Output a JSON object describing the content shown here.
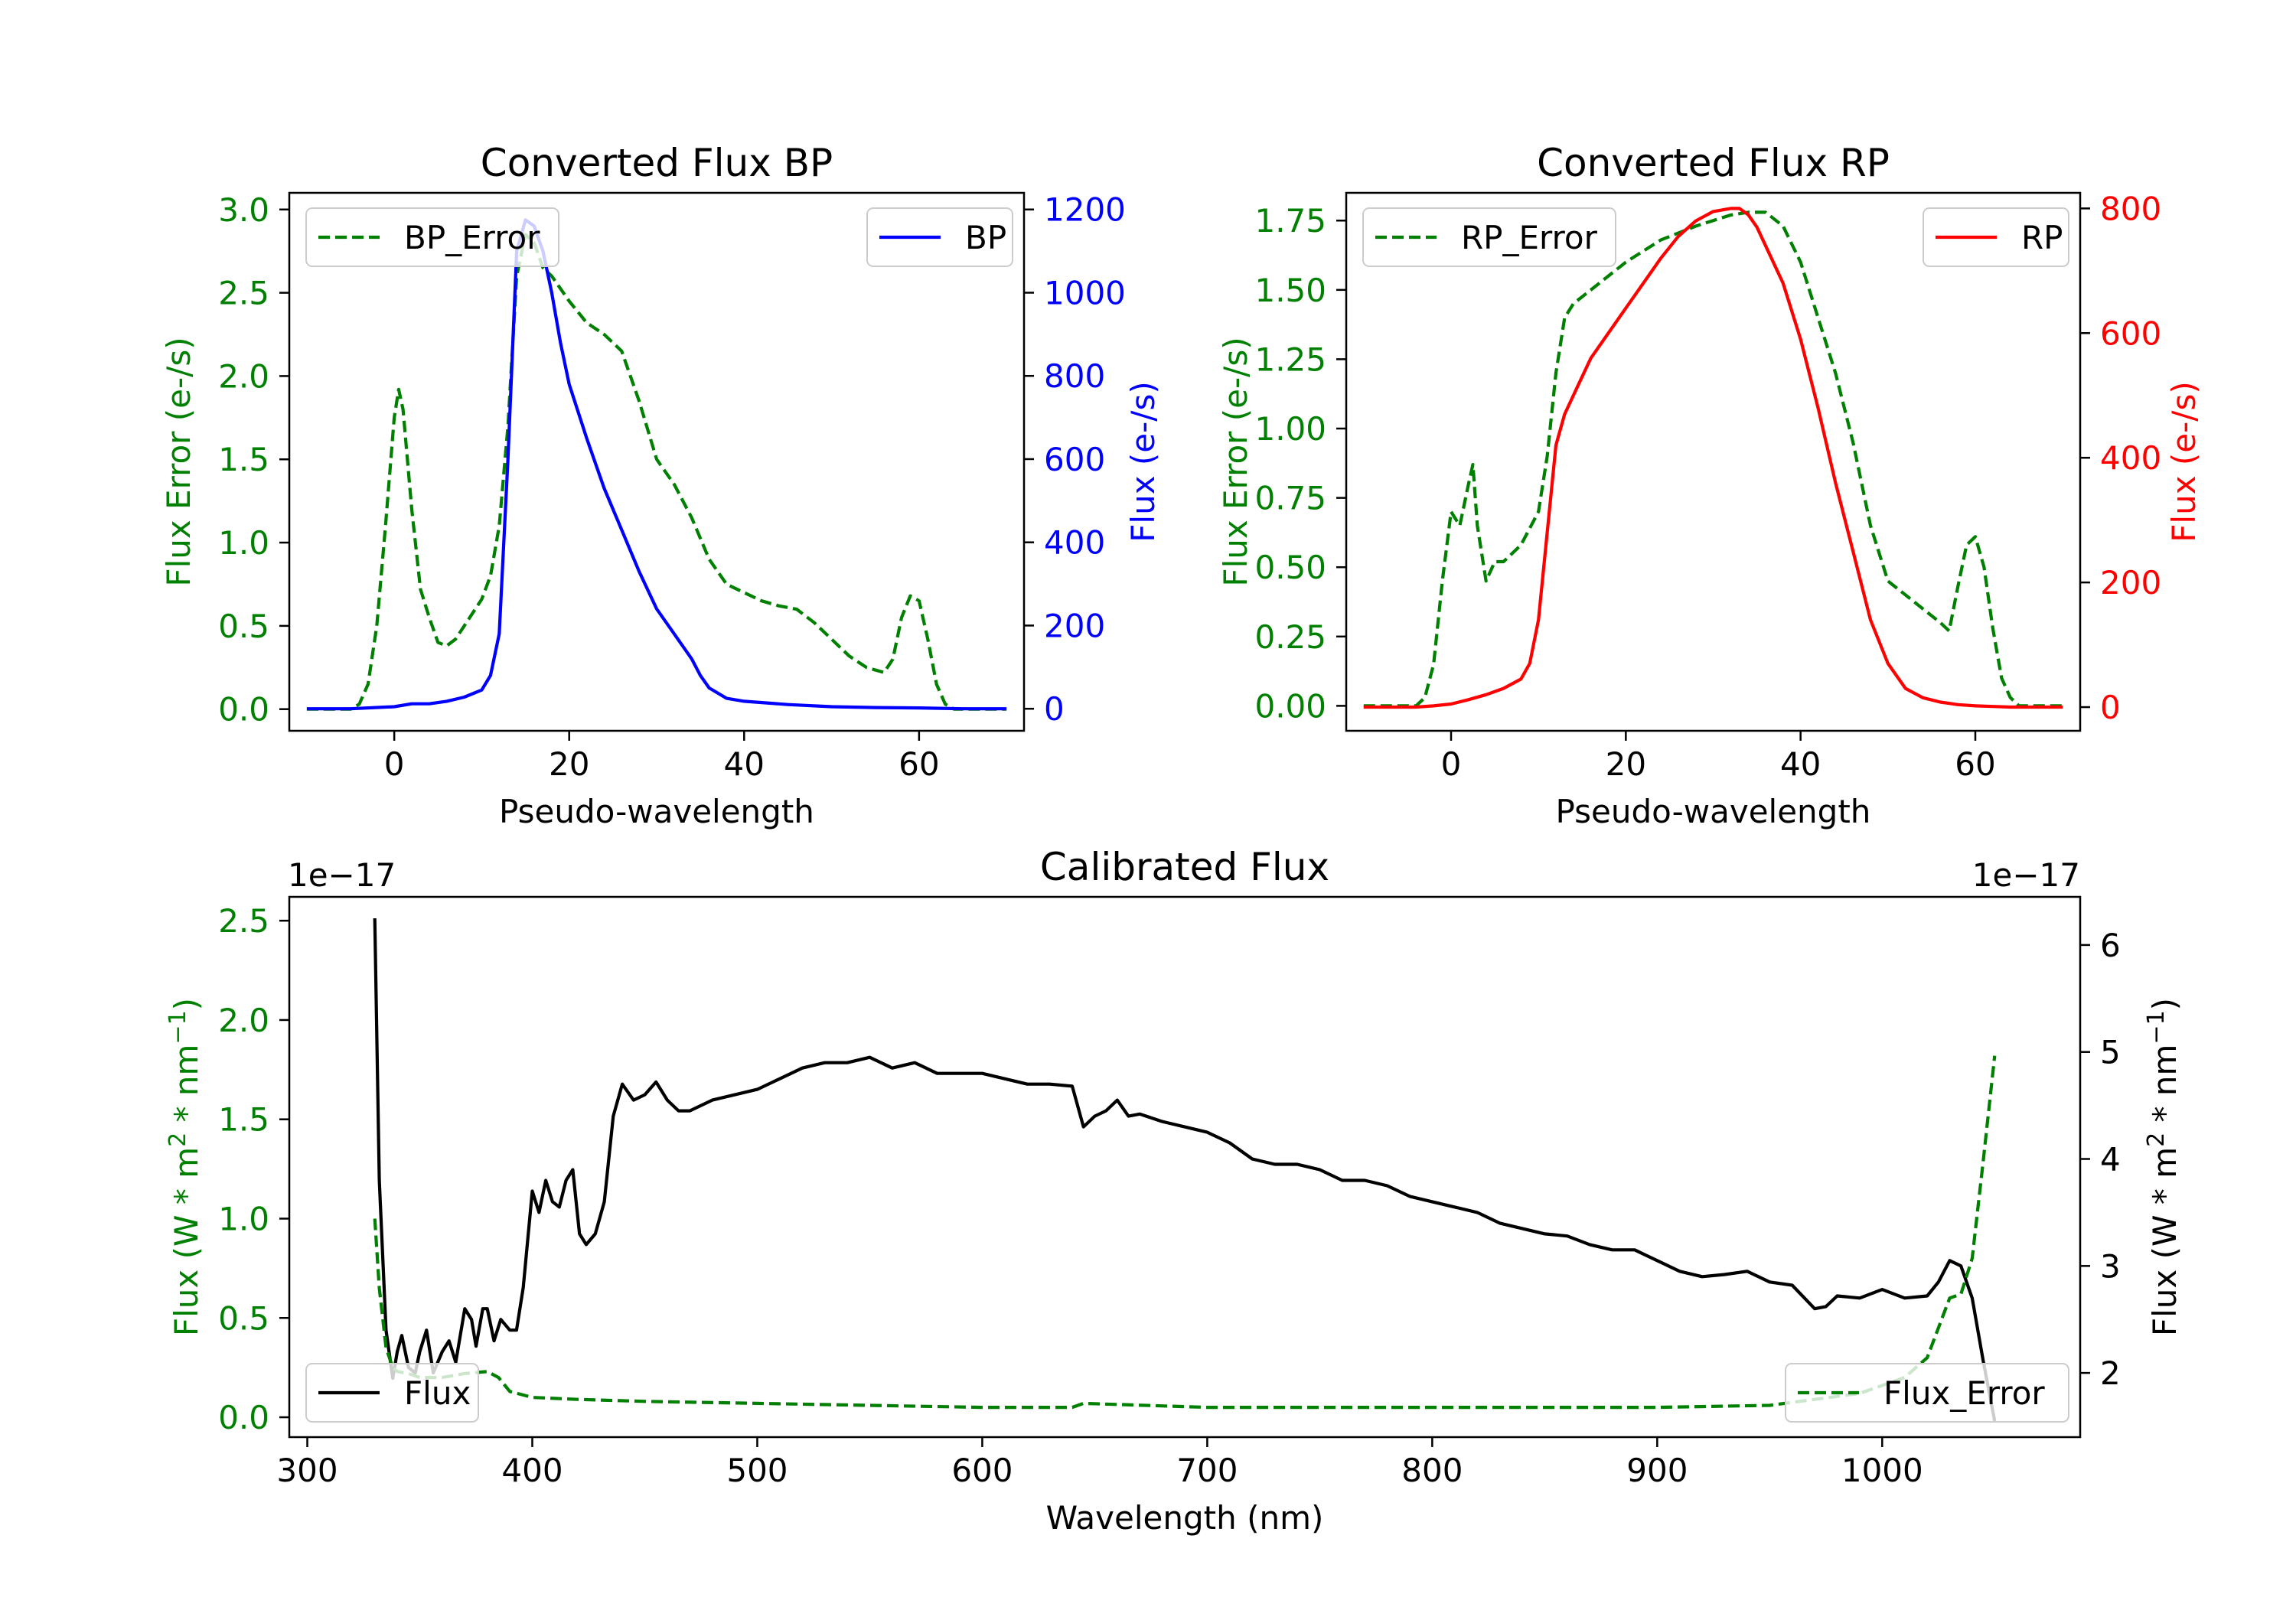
{
  "colors": {
    "bp": "#0000ff",
    "rp": "#ff0000",
    "error": "#008000",
    "flux": "#000000",
    "axis": "#000000",
    "legend_border": "#cccccc"
  },
  "chart_data": [
    {
      "type": "line",
      "title": "Converted Flux BP",
      "xlabel": "Pseudo-wavelength",
      "ylabel_left": "Flux Error (e-/s)",
      "ylabel_right": "Flux (e-/s)",
      "xlim": [
        -12,
        72
      ],
      "ylim_left": [
        -0.13,
        3.1
      ],
      "ylim_right": [
        -53,
        1240
      ],
      "xticks": [
        "0",
        "20",
        "40",
        "60"
      ],
      "xtick_values": [
        0,
        20,
        40,
        60
      ],
      "yticks_left": [
        "0.0",
        "0.5",
        "1.0",
        "1.5",
        "2.0",
        "2.5",
        "3.0"
      ],
      "ytick_values_left": [
        0,
        0.5,
        1.0,
        1.5,
        2.0,
        2.5,
        3.0
      ],
      "yticks_right": [
        "0",
        "200",
        "400",
        "600",
        "800",
        "1000",
        "1200"
      ],
      "ytick_values_right": [
        0,
        200,
        400,
        600,
        800,
        1000,
        1200
      ],
      "legend_left": "BP_Error",
      "legend_right": "BP",
      "series": [
        {
          "name": "BP_Error",
          "axis": "left",
          "style": "dashed",
          "x": [
            -10,
            -5,
            -4,
            -3,
            -2,
            -1,
            0,
            0.5,
            1,
            2,
            3,
            4,
            5,
            6,
            7,
            8,
            9,
            10,
            11,
            12,
            13,
            14,
            15,
            16,
            17,
            18,
            20,
            22,
            24,
            26,
            28,
            30,
            32,
            34,
            36,
            38,
            40,
            42,
            44,
            46,
            48,
            50,
            52,
            54,
            56,
            57,
            58,
            59,
            60,
            61,
            62,
            63,
            64,
            66,
            70
          ],
          "y": [
            0,
            0,
            0.03,
            0.15,
            0.5,
            1.1,
            1.75,
            1.92,
            1.8,
            1.2,
            0.72,
            0.55,
            0.4,
            0.38,
            0.42,
            0.5,
            0.58,
            0.66,
            0.8,
            1.1,
            1.7,
            2.6,
            2.85,
            2.8,
            2.65,
            2.6,
            2.45,
            2.32,
            2.25,
            2.15,
            1.85,
            1.5,
            1.35,
            1.15,
            0.9,
            0.75,
            0.7,
            0.65,
            0.62,
            0.6,
            0.52,
            0.42,
            0.32,
            0.25,
            0.22,
            0.3,
            0.55,
            0.68,
            0.65,
            0.42,
            0.15,
            0.03,
            0,
            0,
            0
          ]
        },
        {
          "name": "BP",
          "axis": "right",
          "style": "solid",
          "x": [
            -10,
            -5,
            0,
            2,
            4,
            6,
            8,
            10,
            11,
            12,
            13,
            14,
            15,
            16,
            17,
            18,
            19,
            20,
            22,
            24,
            26,
            28,
            30,
            32,
            34,
            35,
            36,
            38,
            40,
            45,
            50,
            55,
            60,
            65,
            70
          ],
          "y": [
            0,
            0,
            5,
            12,
            12,
            18,
            28,
            45,
            80,
            180,
            600,
            1100,
            1175,
            1160,
            1100,
            1000,
            880,
            780,
            650,
            530,
            430,
            330,
            240,
            180,
            120,
            80,
            50,
            25,
            18,
            10,
            5,
            3,
            2,
            0,
            0
          ]
        }
      ]
    },
    {
      "type": "line",
      "title": "Converted Flux RP",
      "xlabel": "Pseudo-wavelength",
      "ylabel_left": "Flux Error (e-/s)",
      "ylabel_right": "Flux (e-/s)",
      "xlim": [
        -12,
        72
      ],
      "ylim_left": [
        -0.09,
        1.85
      ],
      "ylim_right": [
        -38,
        825
      ],
      "xticks": [
        "0",
        "20",
        "40",
        "60"
      ],
      "xtick_values": [
        0,
        20,
        40,
        60
      ],
      "yticks_left": [
        "0.00",
        "0.25",
        "0.50",
        "0.75",
        "1.00",
        "1.25",
        "1.50",
        "1.75"
      ],
      "ytick_values_left": [
        0,
        0.25,
        0.5,
        0.75,
        1.0,
        1.25,
        1.5,
        1.75
      ],
      "yticks_right": [
        "0",
        "200",
        "400",
        "600",
        "800"
      ],
      "ytick_values_right": [
        0,
        200,
        400,
        600,
        800
      ],
      "legend_left": "RP_Error",
      "legend_right": "RP",
      "series": [
        {
          "name": "RP_Error",
          "axis": "left",
          "style": "dashed",
          "x": [
            -10,
            -4,
            -3,
            -2,
            -1,
            0,
            1,
            2,
            2.5,
            3,
            4,
            5,
            6,
            8,
            10,
            11,
            12,
            13,
            14,
            16,
            20,
            24,
            28,
            32,
            34,
            36,
            38,
            40,
            42,
            44,
            46,
            48,
            50,
            52,
            54,
            56,
            57,
            58,
            59,
            60,
            61,
            62,
            63,
            64,
            65,
            70
          ],
          "y": [
            0,
            0,
            0.03,
            0.15,
            0.45,
            0.7,
            0.65,
            0.8,
            0.87,
            0.65,
            0.45,
            0.52,
            0.52,
            0.58,
            0.7,
            0.9,
            1.2,
            1.4,
            1.45,
            1.5,
            1.6,
            1.68,
            1.73,
            1.77,
            1.78,
            1.78,
            1.73,
            1.6,
            1.4,
            1.2,
            0.95,
            0.65,
            0.45,
            0.4,
            0.35,
            0.3,
            0.27,
            0.43,
            0.58,
            0.61,
            0.5,
            0.28,
            0.1,
            0.03,
            0,
            0
          ]
        },
        {
          "name": "RP",
          "axis": "right",
          "style": "solid",
          "x": [
            -10,
            -4,
            -2,
            0,
            2,
            4,
            6,
            8,
            9,
            10,
            11,
            12,
            13,
            14,
            16,
            18,
            20,
            22,
            24,
            26,
            28,
            30,
            32,
            33,
            34,
            35,
            36,
            38,
            40,
            42,
            44,
            46,
            48,
            50,
            52,
            54,
            56,
            58,
            60,
            62,
            64,
            66,
            70
          ],
          "y": [
            0,
            0,
            2,
            5,
            12,
            20,
            30,
            45,
            70,
            140,
            280,
            420,
            470,
            500,
            560,
            600,
            640,
            680,
            720,
            755,
            780,
            795,
            800,
            800,
            790,
            770,
            740,
            680,
            590,
            480,
            360,
            250,
            140,
            70,
            30,
            15,
            8,
            4,
            2,
            1,
            0,
            0,
            0
          ]
        }
      ]
    },
    {
      "type": "line",
      "title": "Calibrated Flux",
      "xlabel": "Wavelength (nm)",
      "ylabel_left": "Flux (W * m",
      "ylabel_left_sup": "2",
      "ylabel_left_mid": " * nm",
      "ylabel_left_sup2": "−1",
      "ylabel_left_end": ")",
      "ylabel_right": "Flux (W * m",
      "ylabel_right_sup": "2",
      "ylabel_right_mid": " * nm",
      "ylabel_right_sup2": "−1",
      "ylabel_right_end": ")",
      "offset_left": "1e−17",
      "offset_right": "1e−17",
      "xlim": [
        292,
        1088
      ],
      "ylim_left": [
        -0.1,
        2.62
      ],
      "ylim_right": [
        1.4,
        6.45
      ],
      "xticks": [
        "300",
        "400",
        "500",
        "600",
        "700",
        "800",
        "900",
        "1000"
      ],
      "xtick_values": [
        300,
        400,
        500,
        600,
        700,
        800,
        900,
        1000
      ],
      "yticks_left": [
        "0.0",
        "0.5",
        "1.0",
        "1.5",
        "2.0",
        "2.5"
      ],
      "ytick_values_left": [
        0,
        0.5,
        1.0,
        1.5,
        2.0,
        2.5
      ],
      "yticks_right": [
        "2",
        "3",
        "4",
        "5",
        "6"
      ],
      "ytick_values_right": [
        2,
        3,
        4,
        5,
        6
      ],
      "legend_left": "Flux",
      "legend_right": "Flux_Error",
      "series": [
        {
          "name": "Flux",
          "axis": "right",
          "style": "solid",
          "x": [
            330,
            332,
            335,
            338,
            340,
            342,
            345,
            348,
            350,
            353,
            356,
            360,
            363,
            366,
            370,
            373,
            375,
            378,
            380,
            383,
            386,
            390,
            393,
            396,
            400,
            403,
            406,
            409,
            412,
            415,
            418,
            421,
            424,
            428,
            432,
            436,
            440,
            445,
            450,
            455,
            460,
            465,
            470,
            475,
            480,
            490,
            500,
            510,
            520,
            530,
            540,
            550,
            560,
            570,
            580,
            590,
            600,
            610,
            620,
            630,
            640,
            645,
            650,
            655,
            660,
            665,
            670,
            680,
            690,
            700,
            710,
            720,
            730,
            740,
            750,
            760,
            770,
            780,
            790,
            800,
            810,
            820,
            830,
            840,
            850,
            860,
            870,
            880,
            890,
            900,
            910,
            920,
            930,
            940,
            950,
            960,
            970,
            975,
            980,
            990,
            1000,
            1010,
            1020,
            1025,
            1030,
            1035,
            1040,
            1045,
            1050
          ],
          "y": [
            6.25,
            3.8,
            2.4,
            1.95,
            2.2,
            2.35,
            2.05,
            2.0,
            2.2,
            2.4,
            2.0,
            2.2,
            2.3,
            2.1,
            2.6,
            2.5,
            2.25,
            2.6,
            2.6,
            2.3,
            2.5,
            2.4,
            2.4,
            2.8,
            3.7,
            3.5,
            3.8,
            3.6,
            3.55,
            3.8,
            3.9,
            3.3,
            3.2,
            3.3,
            3.6,
            4.4,
            4.7,
            4.55,
            4.6,
            4.72,
            4.55,
            4.45,
            4.45,
            4.5,
            4.55,
            4.6,
            4.65,
            4.75,
            4.85,
            4.9,
            4.9,
            4.95,
            4.85,
            4.9,
            4.8,
            4.8,
            4.8,
            4.75,
            4.7,
            4.7,
            4.68,
            4.3,
            4.4,
            4.45,
            4.55,
            4.4,
            4.42,
            4.35,
            4.3,
            4.25,
            4.15,
            4.0,
            3.95,
            3.95,
            3.9,
            3.8,
            3.8,
            3.75,
            3.65,
            3.6,
            3.55,
            3.5,
            3.4,
            3.35,
            3.3,
            3.28,
            3.2,
            3.15,
            3.15,
            3.05,
            2.95,
            2.9,
            2.92,
            2.95,
            2.85,
            2.82,
            2.6,
            2.62,
            2.72,
            2.7,
            2.78,
            2.7,
            2.72,
            2.85,
            3.05,
            3.0,
            2.7,
            2.1,
            1.55
          ]
        },
        {
          "name": "Flux_Error",
          "axis": "left",
          "style": "dashed",
          "x": [
            330,
            332,
            335,
            338,
            340,
            345,
            350,
            360,
            370,
            380,
            385,
            390,
            400,
            420,
            450,
            500,
            550,
            600,
            640,
            645,
            700,
            800,
            900,
            950,
            990,
            1010,
            1020,
            1025,
            1030,
            1035,
            1040,
            1045,
            1050
          ],
          "y": [
            1.0,
            0.65,
            0.35,
            0.25,
            0.23,
            0.22,
            0.2,
            0.2,
            0.22,
            0.23,
            0.2,
            0.13,
            0.1,
            0.09,
            0.08,
            0.07,
            0.06,
            0.05,
            0.05,
            0.07,
            0.05,
            0.05,
            0.05,
            0.06,
            0.12,
            0.2,
            0.3,
            0.45,
            0.6,
            0.62,
            0.8,
            1.3,
            1.82
          ]
        }
      ]
    }
  ]
}
